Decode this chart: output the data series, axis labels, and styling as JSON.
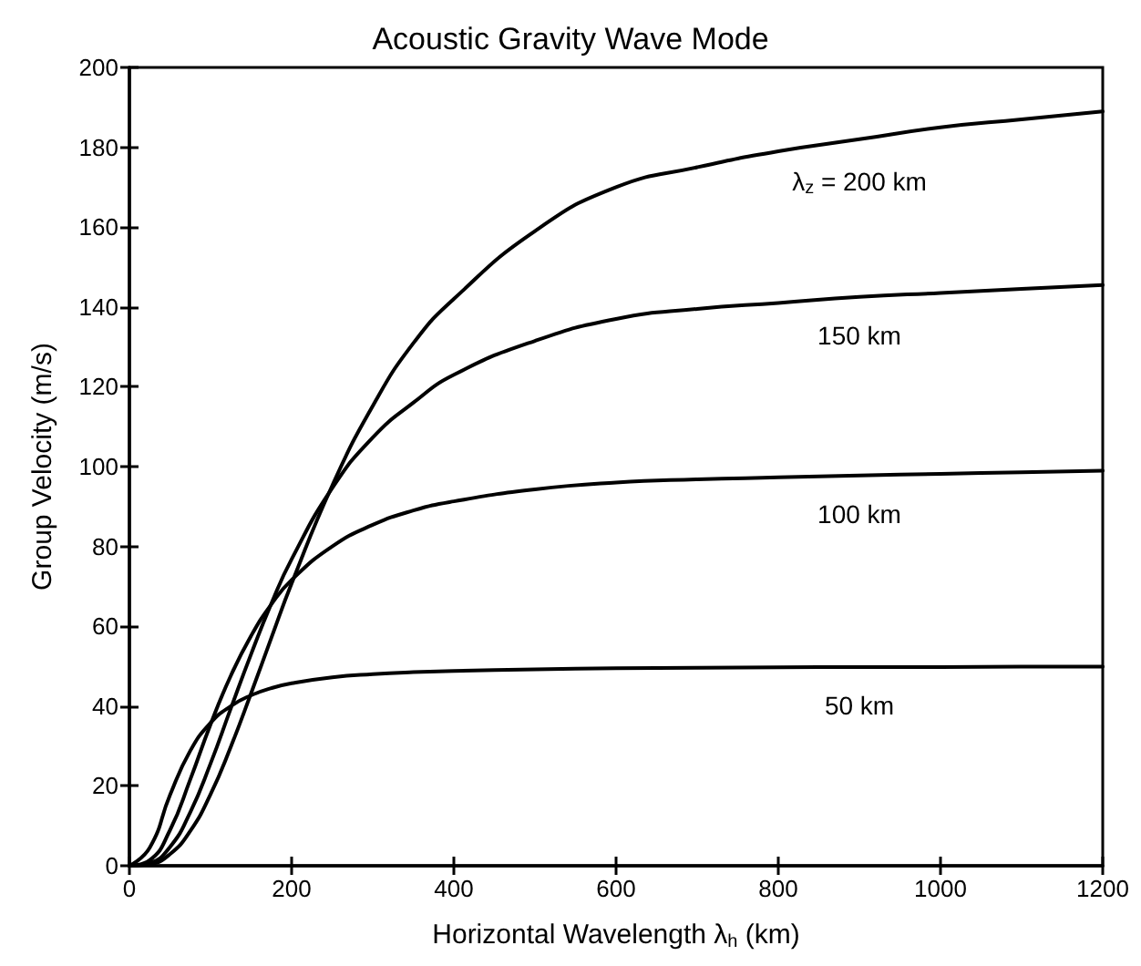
{
  "chart_data": {
    "type": "line",
    "title": "Acoustic Gravity Wave Mode",
    "xlabel": "Horizontal Wavelength λ$_{h}$ (km)",
    "ylabel": "Group Velocity (m/s)",
    "x": [
      0,
      25,
      50,
      75,
      100,
      125,
      150,
      175,
      200,
      250,
      300,
      350,
      400,
      500,
      600,
      700,
      800,
      900,
      1000,
      1100,
      1200
    ],
    "series": [
      {
        "name": "λ$_{z}$ = 200 km",
        "color": "#000000",
        "values": [
          0,
          0.4,
          2.9,
          8.7,
          17.9,
          29.8,
          43.2,
          57.1,
          70.7,
          95.2,
          115.2,
          130.9,
          142,
          159,
          170,
          175,
          179,
          182,
          185,
          187,
          189
        ]
      },
      {
        "name": "150 km",
        "color": "#000000",
        "values": [
          0,
          0.7,
          4.7,
          13.4,
          25.6,
          39.4,
          53,
          65.7,
          76.8,
          94.6,
          107.3,
          116,
          123,
          131.5,
          137,
          139.5,
          141,
          142.5,
          143.5,
          144.5,
          145.5
        ]
      },
      {
        "name": "100 km",
        "color": "#000000",
        "values": [
          0,
          1.4,
          8.9,
          21.6,
          35.4,
          47.6,
          57.6,
          65.5,
          71.6,
          80,
          85.4,
          89,
          91.3,
          94.3,
          96,
          96.8,
          97.3,
          97.8,
          98.2,
          98.6,
          99
        ]
      },
      {
        "name": "50 km",
        "color": "#000000",
        "values": [
          0,
          4.5,
          17.7,
          28.8,
          35.8,
          40,
          42.7,
          44.5,
          45.7,
          47.2,
          48,
          48.5,
          48.8,
          49.2,
          49.5,
          49.6,
          49.7,
          49.8,
          49.8,
          49.9,
          49.9
        ]
      }
    ],
    "xlim": [
      0,
      1200
    ],
    "xticks": [
      0,
      200,
      400,
      600,
      800,
      1000,
      1200
    ],
    "ylim": [
      0,
      200
    ],
    "yticks": [
      0,
      20,
      40,
      60,
      80,
      100,
      120,
      140,
      160,
      180,
      200
    ],
    "grid": false,
    "legend": false,
    "marker": "none",
    "line_style": "solid"
  }
}
